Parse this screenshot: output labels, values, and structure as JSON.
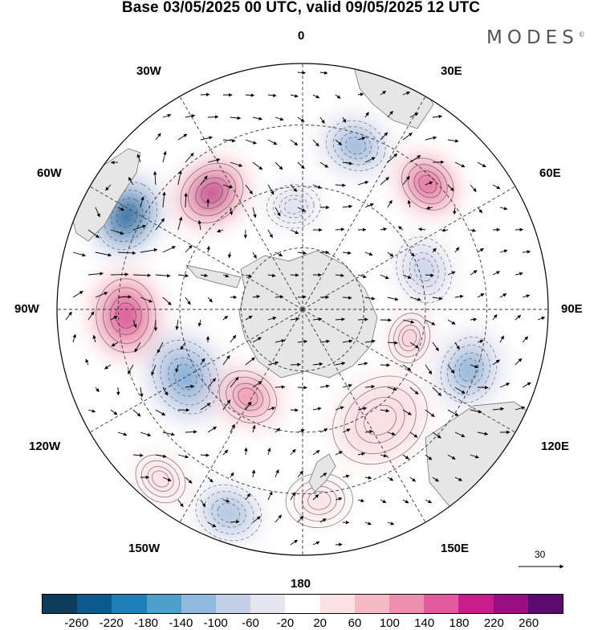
{
  "title": "Base 03/05/2025 00 UTC, valid 09/05/2025 12 UTC",
  "brand": "MODES",
  "brand_mark": "©",
  "longitude_labels": {
    "n": "0",
    "s": "180",
    "w90": "90W",
    "e90": "90E",
    "w30": "30W",
    "e30": "30E",
    "w60": "60W",
    "e60": "60E",
    "w120": "120W",
    "e120": "120E",
    "w150": "150W",
    "e150": "150E"
  },
  "reference_vector": {
    "label": "30",
    "value": 30
  },
  "colorbar": {
    "colors": [
      "#0d3b5c",
      "#0b5a8b",
      "#1f7fb8",
      "#4f9fcd",
      "#8fb9dd",
      "#c2cfe7",
      "#e6e6f3",
      "#ffffff",
      "#fbe0e3",
      "#f6bac6",
      "#ef8fb0",
      "#e45a9e",
      "#c91d8c",
      "#9a0e83",
      "#5b0a6e"
    ],
    "ticks": [
      "-260",
      "-220",
      "-180",
      "-140",
      "-100",
      "-60",
      "-20",
      "20",
      "60",
      "100",
      "140",
      "180",
      "220",
      "260"
    ]
  },
  "anomalies": [
    {
      "lon": -38,
      "r": 0.6,
      "value": 230,
      "size": 0.2
    },
    {
      "lon": -62,
      "r": 0.81,
      "value": -260,
      "size": 0.21
    },
    {
      "lon": -92,
      "r": 0.72,
      "value": 210,
      "size": 0.22
    },
    {
      "lon": -120,
      "r": 0.55,
      "value": -170,
      "size": 0.23
    },
    {
      "lon": -148,
      "r": 0.42,
      "value": 150,
      "size": 0.18
    },
    {
      "lon": -160,
      "r": 0.88,
      "value": -120,
      "size": 0.2
    },
    {
      "lon": 18,
      "r": 0.7,
      "value": -140,
      "size": 0.18
    },
    {
      "lon": 45,
      "r": 0.72,
      "value": 190,
      "size": 0.17
    },
    {
      "lon": 72,
      "r": 0.52,
      "value": -90,
      "size": 0.2
    },
    {
      "lon": 110,
      "r": 0.72,
      "value": -150,
      "size": 0.2
    },
    {
      "lon": 105,
      "r": 0.45,
      "value": 80,
      "size": 0.15
    },
    {
      "lon": 145,
      "r": 0.55,
      "value": 60,
      "size": 0.3
    },
    {
      "lon": 175,
      "r": 0.78,
      "value": 40,
      "size": 0.2
    },
    {
      "lon": -5,
      "r": 0.42,
      "value": -60,
      "size": 0.16
    },
    {
      "lon": -140,
      "r": 0.9,
      "value": 60,
      "size": 0.16
    }
  ]
}
